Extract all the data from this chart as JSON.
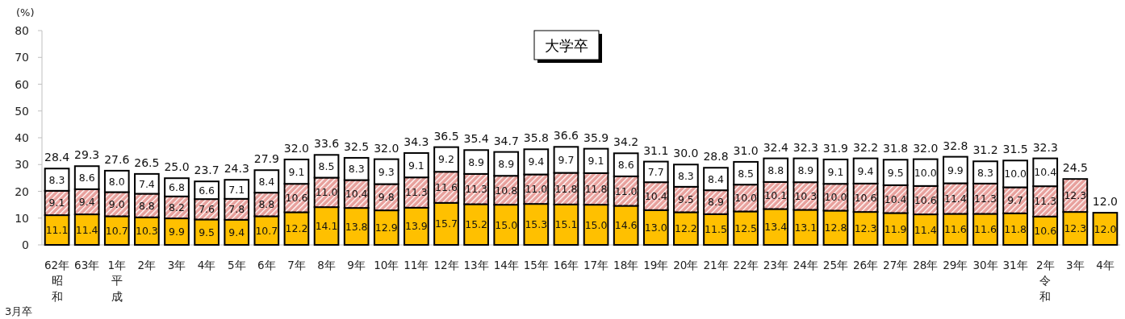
{
  "chart_data": {
    "type": "bar",
    "title": "大学卒",
    "ylabel": "(%)",
    "stacked": true,
    "categories": [
      "62年",
      "63年",
      "1年",
      "2年",
      "3年",
      "4年",
      "5年",
      "6年",
      "7年",
      "8年",
      "9年",
      "10年",
      "11年",
      "12年",
      "13年",
      "14年",
      "15年",
      "16年",
      "17年",
      "18年",
      "19年",
      "20年",
      "21年",
      "22年",
      "23年",
      "24年",
      "25年",
      "26年",
      "27年",
      "28年",
      "29年",
      "30年",
      "31年",
      "2年",
      "3年",
      "4年"
    ],
    "series": [
      {
        "color": "#ffc000",
        "values": [
          11.1,
          11.4,
          10.7,
          10.3,
          9.9,
          9.5,
          9.4,
          10.7,
          12.2,
          14.1,
          13.8,
          12.9,
          13.9,
          15.7,
          15.2,
          15.0,
          15.3,
          15.1,
          15.0,
          14.6,
          13.0,
          12.2,
          11.5,
          12.5,
          13.4,
          13.1,
          12.8,
          12.3,
          11.9,
          11.4,
          11.6,
          11.6,
          11.8,
          10.6,
          12.3,
          12.0
        ],
        "value_labels": [
          "11.1",
          "11.4",
          "10.7",
          "10.3",
          "9.9",
          "9.5",
          "9.4",
          "10.7",
          "12.2",
          "14.1",
          "13.8",
          "12.9",
          "13.9",
          "15.7",
          "15.2",
          "15.0",
          "15.3",
          "15.1",
          "15.0",
          "14.6",
          "13.0",
          "12.2",
          "11.5",
          "12.5",
          "13.4",
          "13.1",
          "12.8",
          "12.3",
          "11.9",
          "11.4",
          "11.6",
          "11.6",
          "11.8",
          "10.6",
          "12.3",
          "12.0"
        ]
      },
      {
        "color": "#e8a09c",
        "values": [
          9.1,
          9.4,
          9.0,
          8.8,
          8.2,
          7.6,
          7.8,
          8.8,
          10.6,
          11.0,
          10.4,
          9.8,
          11.3,
          11.6,
          11.3,
          10.8,
          11.0,
          11.8,
          11.8,
          11.0,
          10.4,
          9.5,
          8.9,
          10.0,
          10.1,
          10.3,
          10.0,
          10.6,
          10.4,
          10.6,
          11.4,
          11.3,
          9.7,
          11.3,
          12.3,
          null
        ],
        "value_labels": [
          "9.1",
          "9.4",
          "9.0",
          "8.8",
          "8.2",
          "7.6",
          "7.8",
          "8.8",
          "10.6",
          "11.0",
          "10.4",
          "9.8",
          "11.3",
          "11.6",
          "11.3",
          "10.8",
          "11.0",
          "11.8",
          "11.8",
          "11.0",
          "10.4",
          "9.5",
          "8.9",
          "10.0",
          "10.1",
          "10.3",
          "10.0",
          "10.6",
          "10.4",
          "10.6",
          "11.4",
          "11.3",
          "9.7",
          "11.3",
          "12.3",
          null
        ]
      },
      {
        "color": "#ffffff",
        "values": [
          8.3,
          8.6,
          8.0,
          7.4,
          6.8,
          6.6,
          7.1,
          8.4,
          9.1,
          8.5,
          8.3,
          9.3,
          9.1,
          9.2,
          8.9,
          8.9,
          9.4,
          9.7,
          9.1,
          8.6,
          7.7,
          8.3,
          8.4,
          8.5,
          8.8,
          8.9,
          9.1,
          9.4,
          9.5,
          10.0,
          9.9,
          8.3,
          10.0,
          10.4,
          null,
          null
        ],
        "value_labels": [
          "8.3",
          "8.6",
          "8.0",
          "7.4",
          "6.8",
          "6.6",
          "7.1",
          "8.4",
          "9.1",
          "8.5",
          "8.3",
          "9.3",
          "9.1",
          "9.2",
          "8.9",
          "8.9",
          "9.4",
          "9.7",
          "9.1",
          "8.6",
          "7.7",
          "8.3",
          "8.4",
          "8.5",
          "8.8",
          "8.9",
          "9.1",
          "9.4",
          "9.5",
          "10.0",
          "9.9",
          "8.3",
          "10.0",
          "10.4",
          null,
          null
        ]
      }
    ],
    "totals": [
      "28.4",
      "29.3",
      "27.6",
      "26.5",
      "25.0",
      "23.7",
      "24.3",
      "27.9",
      "32.0",
      "33.6",
      "32.5",
      "32.0",
      "34.3",
      "36.5",
      "35.4",
      "34.7",
      "35.8",
      "36.6",
      "35.9",
      "34.2",
      "31.1",
      "30.0",
      "28.8",
      "31.0",
      "32.4",
      "32.3",
      "31.9",
      "32.2",
      "31.8",
      "32.0",
      "32.8",
      "31.2",
      "31.5",
      "32.3",
      "24.5",
      "12.0"
    ],
    "ylim": [
      0,
      80
    ],
    "yticks": [
      0,
      10,
      20,
      30,
      40,
      50,
      60,
      70,
      80
    ],
    "grid": false,
    "annotations": [
      "昭和",
      "平成",
      "令和",
      "3月卒"
    ]
  }
}
